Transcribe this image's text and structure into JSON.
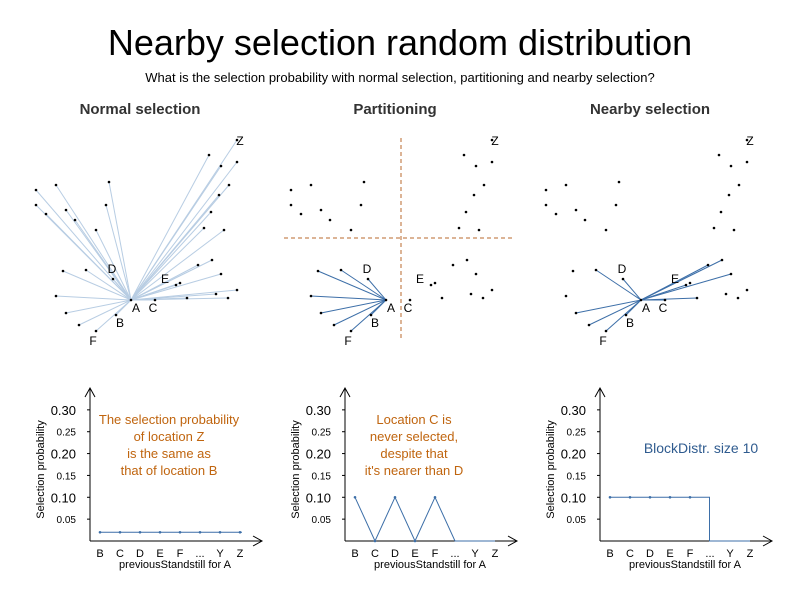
{
  "title": "Nearby selection random distribution",
  "subtitle": "What is the selection probability with normal selection, partitioning and nearby selection?",
  "colors": {
    "line_light": "#b8cde3",
    "line_dark": "#3d6fa8",
    "partition": "#b8692e",
    "note_orange": "#c0650f",
    "note_blue": "#2f5b8f"
  },
  "panels": [
    {
      "title": "Normal selection",
      "point_labels": [
        "A",
        "B",
        "C",
        "D",
        "E",
        "F",
        "Z"
      ],
      "chart": {
        "ylabel": "Selection probability",
        "xlabel": "previousStandstill for A",
        "y_ticks": [
          "0.30",
          "0.25",
          "0.20",
          "0.15",
          "0.10",
          "0.05"
        ],
        "categories": [
          "B",
          "C",
          "D",
          "E",
          "F",
          "...",
          "Y",
          "Z"
        ],
        "note": [
          "The selection probability",
          "of location Z",
          "is the same as",
          "that of location B"
        ]
      }
    },
    {
      "title": "Partitioning",
      "point_labels": [
        "A",
        "B",
        "C",
        "D",
        "E",
        "F",
        "Z"
      ],
      "chart": {
        "ylabel": "Selection probability",
        "xlabel": "previousStandstill for A",
        "y_ticks": [
          "0.30",
          "0.25",
          "0.20",
          "0.15",
          "0.10",
          "0.05"
        ],
        "categories": [
          "B",
          "C",
          "D",
          "E",
          "F",
          "...",
          "Y",
          "Z"
        ],
        "note": [
          "Location C is",
          "never selected,",
          "despite that",
          "it's nearer than D"
        ]
      }
    },
    {
      "title": "Nearby selection",
      "point_labels": [
        "A",
        "B",
        "C",
        "D",
        "E",
        "F",
        "Z"
      ],
      "chart": {
        "ylabel": "Selection probability",
        "xlabel": "previousStandstill for A",
        "y_ticks": [
          "0.30",
          "0.25",
          "0.20",
          "0.15",
          "0.10",
          "0.05"
        ],
        "categories": [
          "B",
          "C",
          "D",
          "E",
          "F",
          "...",
          "Y",
          "Z"
        ],
        "note": [
          "BlockDistr. size 10"
        ]
      }
    }
  ],
  "chart_data": [
    {
      "type": "line",
      "categories": [
        "B",
        "C",
        "D",
        "E",
        "F",
        "...",
        "Y",
        "Z"
      ],
      "values": [
        0.02,
        0.02,
        0.02,
        0.02,
        0.02,
        0.02,
        0.02,
        0.02
      ],
      "xlabel": "previousStandstill for A",
      "ylabel": "Selection probability",
      "ylim": [
        0,
        0.35
      ]
    },
    {
      "type": "line",
      "categories": [
        "B",
        "C",
        "D",
        "E",
        "F",
        "...",
        "Y",
        "Z"
      ],
      "values": [
        0.1,
        0.0,
        0.1,
        0.0,
        0.1,
        0.0,
        0.0,
        0.0
      ],
      "xlabel": "previousStandstill for A",
      "ylabel": "Selection probability",
      "ylim": [
        0,
        0.35
      ]
    },
    {
      "type": "line",
      "categories": [
        "B",
        "C",
        "D",
        "E",
        "F",
        "...",
        "Y",
        "Z"
      ],
      "values": [
        0.1,
        0.1,
        0.1,
        0.1,
        0.1,
        0.1,
        0.0,
        0.0
      ],
      "xlabel": "previousStandstill for A",
      "ylabel": "Selection probability",
      "ylim": [
        0,
        0.35
      ]
    }
  ]
}
